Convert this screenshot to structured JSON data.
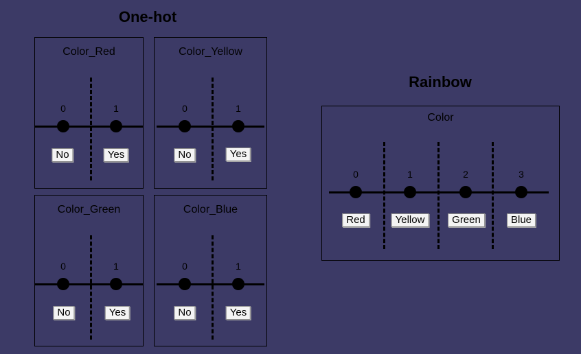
{
  "onehot": {
    "title": "One-hot",
    "panels": [
      {
        "title": "Color_Red",
        "values": [
          "0",
          "1"
        ],
        "labels": [
          "No",
          "Yes"
        ]
      },
      {
        "title": "Color_Yellow",
        "values": [
          "0",
          "1"
        ],
        "labels": [
          "No",
          "Yes"
        ]
      },
      {
        "title": "Color_Green",
        "values": [
          "0",
          "1"
        ],
        "labels": [
          "No",
          "Yes"
        ]
      },
      {
        "title": "Color_Blue",
        "values": [
          "0",
          "1"
        ],
        "labels": [
          "No",
          "Yes"
        ]
      }
    ]
  },
  "rainbow": {
    "title": "Rainbow",
    "panel": {
      "title": "Color",
      "values": [
        "0",
        "1",
        "2",
        "3"
      ],
      "labels": [
        "Red",
        "Yellow",
        "Green",
        "Blue"
      ]
    }
  },
  "colors": {
    "background": "#3c3a66",
    "ink": "#000000",
    "label_bg": "#f4f4f4"
  }
}
